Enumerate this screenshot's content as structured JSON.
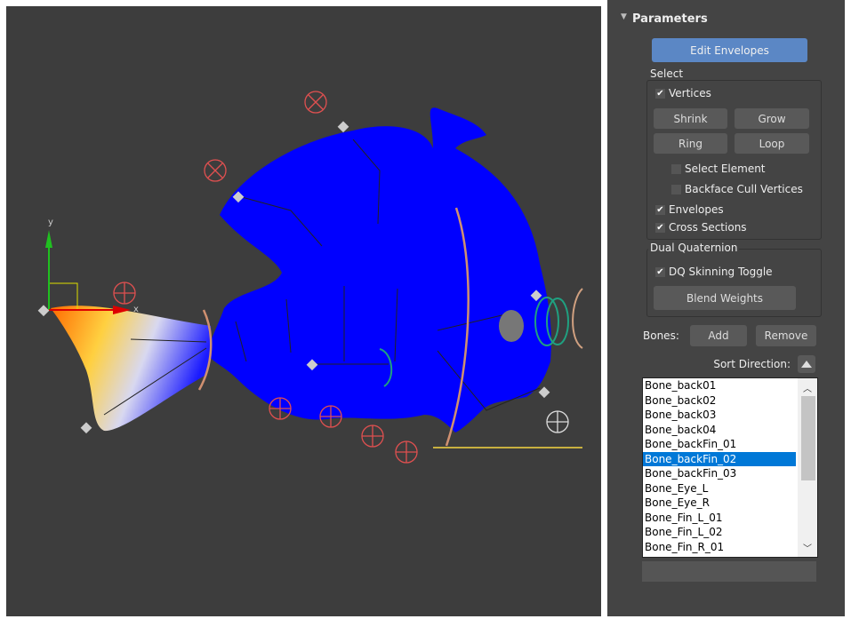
{
  "viewport": {
    "axis_y": "y",
    "axis_x": "x"
  },
  "panel": {
    "title": "Parameters",
    "edit_envelopes": "Edit Envelopes",
    "select": {
      "label": "Select",
      "vertices": {
        "label": "Vertices",
        "checked": true
      },
      "shrink": "Shrink",
      "grow": "Grow",
      "ring": "Ring",
      "loop": "Loop",
      "select_element": {
        "label": "Select Element",
        "checked": false
      },
      "backface_cull": {
        "label": "Backface Cull Vertices",
        "checked": false
      },
      "envelopes": {
        "label": "Envelopes",
        "checked": true
      },
      "cross_sections": {
        "label": "Cross Sections",
        "checked": true
      }
    },
    "dual_quaternion": {
      "label": "Dual Quaternion",
      "dq_toggle": {
        "label": "DQ Skinning Toggle",
        "checked": true
      },
      "blend_weights": "Blend Weights"
    },
    "bones": {
      "label": "Bones:",
      "add": "Add",
      "remove": "Remove",
      "sort_direction": "Sort Direction:",
      "list": [
        "Bone_back01",
        "Bone_back02",
        "Bone_back03",
        "Bone_back04",
        "Bone_backFin_01",
        "Bone_backFin_02",
        "Bone_backFin_03",
        "Bone_Eye_L",
        "Bone_Eye_R",
        "Bone_Fin_L_01",
        "Bone_Fin_L_02",
        "Bone_Fin_R_01"
      ],
      "selected": 5
    }
  }
}
